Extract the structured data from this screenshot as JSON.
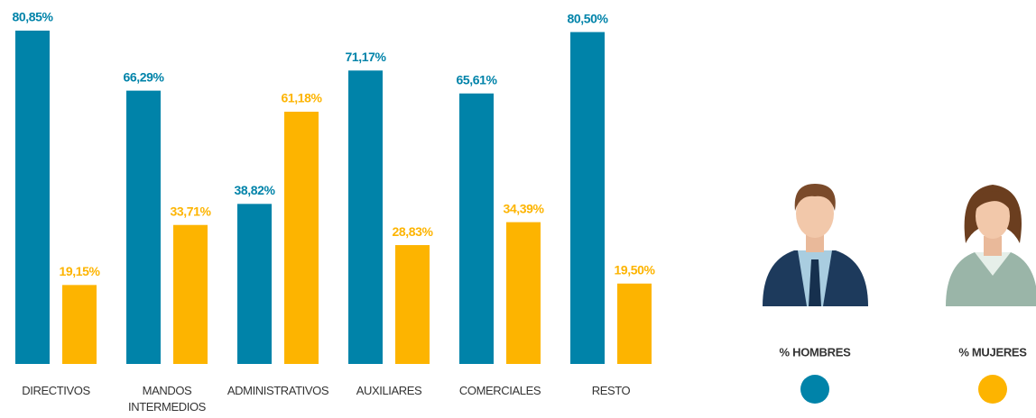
{
  "chart_data": {
    "type": "bar",
    "categories": [
      "DIRECTIVOS",
      "MANDOS INTERMEDIOS",
      "ADMINISTRATIVOS",
      "AUXILIARES",
      "COMERCIALES",
      "RESTO"
    ],
    "series": [
      {
        "name": "% HOMBRES",
        "color": "#0083a9",
        "values": [
          80.85,
          66.29,
          38.82,
          71.17,
          65.61,
          80.5
        ],
        "value_labels": [
          "80,85%",
          "66,29%",
          "38,82%",
          "71,17%",
          "65,61%",
          "80,50%"
        ]
      },
      {
        "name": "% MUJERES",
        "color": "#fdb400",
        "values": [
          19.15,
          33.71,
          61.18,
          28.83,
          34.39,
          19.5
        ],
        "value_labels": [
          "19,15%",
          "33,71%",
          "61,18%",
          "28,83%",
          "34,39%",
          "19,50%"
        ]
      }
    ],
    "ylim": [
      0,
      85
    ],
    "grid": false
  }
}
